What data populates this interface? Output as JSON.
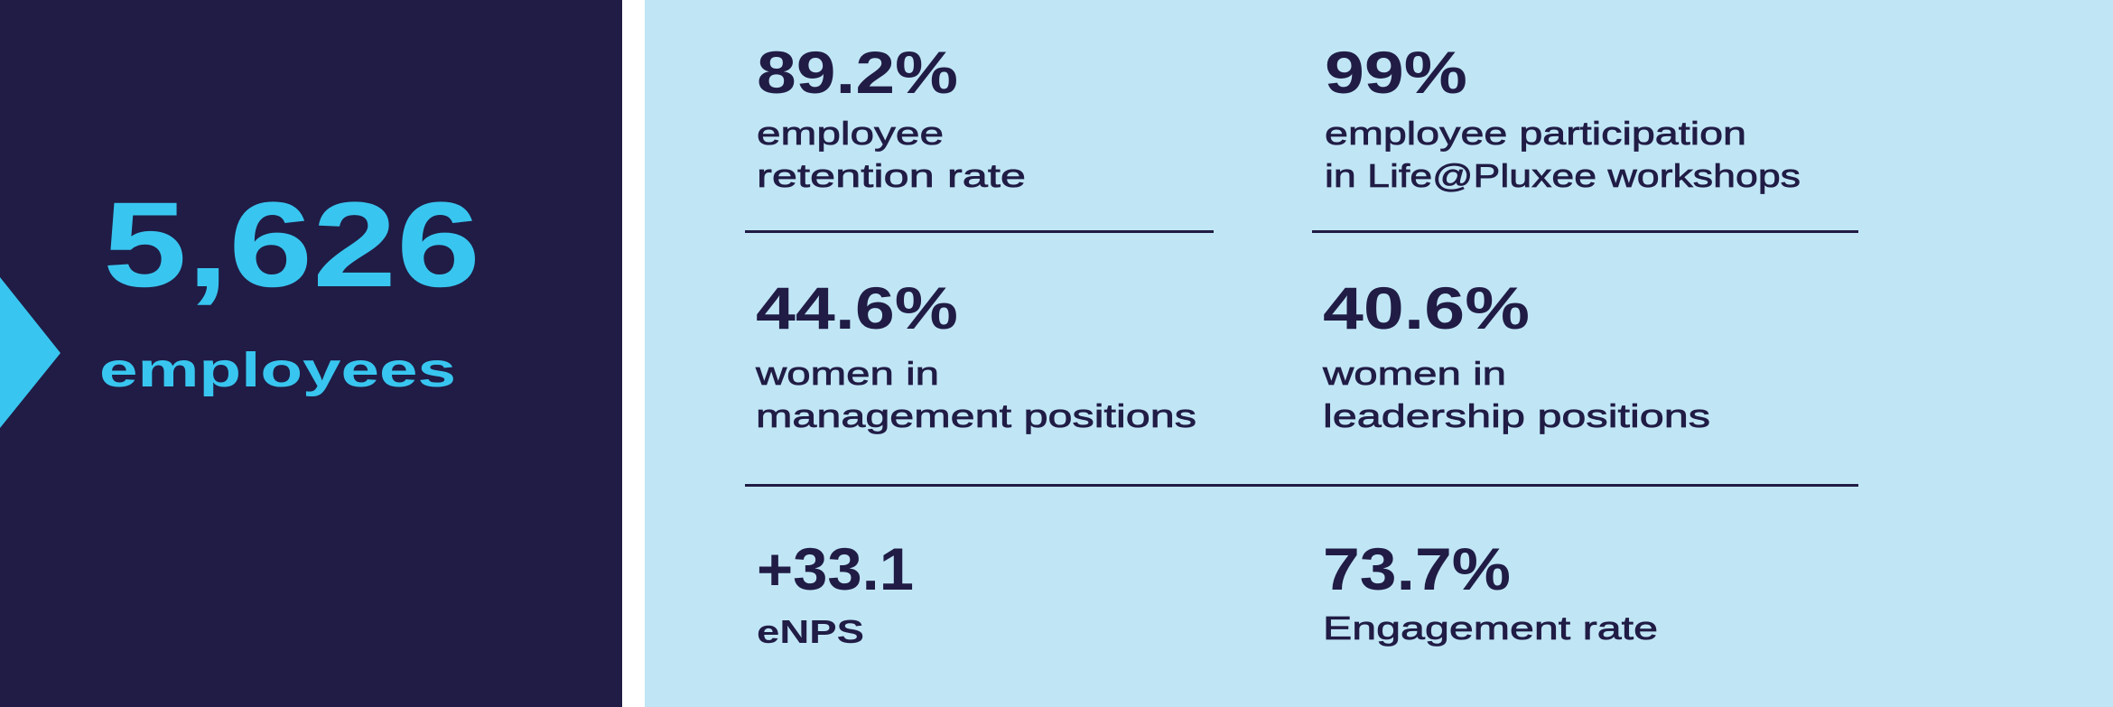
{
  "colors": {
    "dark": "#201c45",
    "accent": "#38c6f0",
    "light": "#c0e6f5"
  },
  "headline": {
    "value": "5,626",
    "label": "employees",
    "icon": "arrow-chevron-right"
  },
  "stats": [
    {
      "value": "89.2%",
      "label_lines": [
        "employee",
        "retention rate"
      ]
    },
    {
      "value": "99%",
      "label_lines": [
        "employee participation",
        "in Life@Pluxee workshops"
      ]
    },
    {
      "value": "44.6%",
      "label_lines": [
        "women in",
        "management positions"
      ]
    },
    {
      "value": "40.6%",
      "label_lines": [
        "women in",
        "leadership positions"
      ]
    },
    {
      "value": "+33.1",
      "label_lines": [
        "eNPS"
      ]
    },
    {
      "value": "73.7%",
      "label_lines": [
        "Engagement rate"
      ]
    }
  ]
}
